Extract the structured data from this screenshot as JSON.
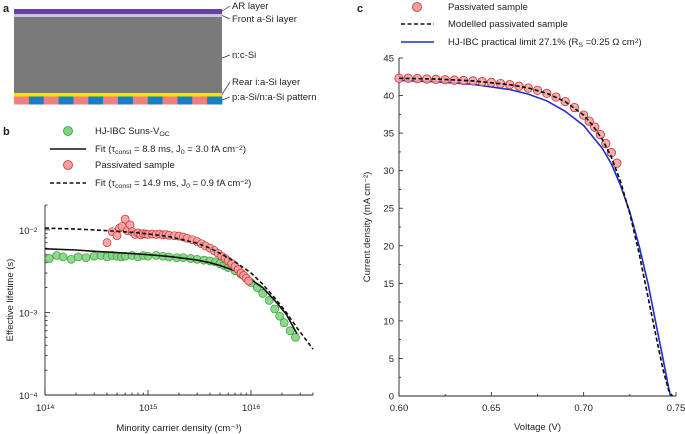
{
  "panel_labels": {
    "a": "a",
    "b": "b",
    "c": "c"
  },
  "schematic": {
    "layers": [
      {
        "label": "AR layer",
        "color": "#6a3fa0"
      },
      {
        "label": "Front a-Si layer",
        "color": "#c9c3e6"
      },
      {
        "label": "n:c-Si",
        "color": "#7a7a7a"
      },
      {
        "label": "Rear i:a-Si layer",
        "color": "#f2e600"
      },
      {
        "label": "p:a-Si/n:a-Si pattern",
        "color": "#f08080"
      }
    ],
    "pattern_colors": [
      "#f08080",
      "#1a7fc0"
    ]
  },
  "chart_data": [
    {
      "type": "scatter",
      "panel": "b",
      "xlabel": "Minority carrier density (cm⁻³)",
      "ylabel": "Effective lifetime (s)",
      "x_scale": "log",
      "y_scale": "log",
      "xlim": [
        100000000000000.0,
        4e+16
      ],
      "ylim": [
        0.0001,
        0.02
      ],
      "x_ticks": [
        {
          "v": 100000000000000.0,
          "base": "10",
          "exp": "14"
        },
        {
          "v": 1000000000000000.0,
          "base": "10",
          "exp": "15"
        },
        {
          "v": 1e+16,
          "base": "10",
          "exp": "16"
        }
      ],
      "y_ticks": [
        {
          "v": 0.0001,
          "base": "10",
          "exp": "−4"
        },
        {
          "v": 0.001,
          "base": "10",
          "exp": "−3"
        },
        {
          "v": 0.01,
          "base": "10",
          "exp": "−2"
        }
      ],
      "legend": [
        {
          "kind": "marker",
          "color": "#7fd47f",
          "stroke": "#3a9a3a",
          "text": "HJ-IBC Suns-V",
          "sub": "OC"
        },
        {
          "kind": "solid",
          "text": "Fit (τ",
          "sub": "const",
          "text2": " = 8.8 ms, J",
          "sub2": "0",
          "text3": " = 3.0 fA cm",
          "sup": "−2",
          "text4": ")"
        },
        {
          "kind": "marker",
          "color": "#f4a0a0",
          "stroke": "#c83030",
          "text": "Passivated sample"
        },
        {
          "kind": "dashed",
          "text": "Fit (τ",
          "sub": "const",
          "text2": " = 14.9 ms, J",
          "sub2": "0",
          "text3": " = 0.9 fA cm",
          "sup": "−2",
          "text4": ")"
        }
      ],
      "series": [
        {
          "name": "HJ-IBC Suns-VOC",
          "kind": "marker",
          "color": "#7fd47f",
          "stroke": "#3a9a3a",
          "x": [
            110000000000000.0,
            130000000000000.0,
            150000000000000.0,
            180000000000000.0,
            210000000000000.0,
            250000000000000.0,
            300000000000000.0,
            350000000000000.0,
            400000000000000.0,
            450000000000000.0,
            500000000000000.0,
            550000000000000.0,
            600000000000000.0,
            700000000000000.0,
            800000000000000.0,
            900000000000000.0,
            1000000000000000.0,
            1200000000000000.0,
            1400000000000000.0,
            1600000000000000.0,
            1900000000000000.0,
            2200000000000000.0,
            2600000000000000.0,
            3000000000000000.0,
            3500000000000000.0,
            4000000000000000.0,
            4500000000000000.0,
            5000000000000000.0,
            5500000000000000.0,
            6000000000000000.0,
            7000000000000000.0,
            8000000000000000.0,
            9000000000000000.0,
            1e+16,
            1.15e+16,
            1.3e+16,
            1.5e+16,
            1.7e+16,
            1.9e+16,
            2.1e+16,
            2.4e+16,
            2.7e+16
          ],
          "y": [
            0.0045,
            0.0049,
            0.0047,
            0.0044,
            0.0047,
            0.0046,
            0.0048,
            0.0049,
            0.0047,
            0.0049,
            0.0048,
            0.0047,
            0.0048,
            0.0049,
            0.0047,
            0.0049,
            0.0048,
            0.0049,
            0.0048,
            0.0047,
            0.0046,
            0.0046,
            0.0045,
            0.0044,
            0.0043,
            0.0042,
            0.0041,
            0.0039,
            0.0037,
            0.0035,
            0.0032,
            0.0029,
            0.0026,
            0.0023,
            0.002,
            0.0017,
            0.0014,
            0.0011,
            0.0009,
            0.00075,
            0.0006,
            0.0005
          ]
        },
        {
          "name": "Fit (τconst = 8.8 ms, J0 = 3.0 fA cm−2)",
          "kind": "solid",
          "color": "#111",
          "x": [
            100000000000000.0,
            200000000000000.0,
            300000000000000.0,
            500000000000000.0,
            800000000000000.0,
            1000000000000000.0,
            1500000000000000.0,
            2000000000000000.0,
            3000000000000000.0,
            4000000000000000.0,
            5000000000000000.0,
            7000000000000000.0,
            1e+16,
            1.3e+16,
            1.7e+16,
            2.2e+16,
            2.8e+16
          ],
          "y": [
            0.0059,
            0.0057,
            0.0055,
            0.0053,
            0.0051,
            0.005,
            0.0048,
            0.0046,
            0.0043,
            0.004,
            0.0037,
            0.0032,
            0.0025,
            0.002,
            0.0014,
            0.00095,
            0.00055
          ]
        },
        {
          "name": "Passivated sample",
          "kind": "marker",
          "color": "#f4a0a0",
          "stroke": "#c83030",
          "x": [
            400000000000000.0,
            450000000000000.0,
            500000000000000.0,
            530000000000000.0,
            560000000000000.0,
            600000000000000.0,
            630000000000000.0,
            670000000000000.0,
            700000000000000.0,
            750000000000000.0,
            800000000000000.0,
            850000000000000.0,
            900000000000000.0,
            950000000000000.0,
            1000000000000000.0,
            1100000000000000.0,
            1200000000000000.0,
            1300000000000000.0,
            1400000000000000.0,
            1500000000000000.0,
            1600000000000000.0,
            1800000000000000.0,
            2000000000000000.0,
            2200000000000000.0,
            2400000000000000.0,
            2700000000000000.0,
            3000000000000000.0,
            3300000000000000.0,
            3600000000000000.0,
            4000000000000000.0,
            4400000000000000.0,
            4800000000000000.0,
            5200000000000000.0,
            5600000000000000.0,
            6000000000000000.0,
            6500000000000000.0,
            7000000000000000.0,
            7500000000000000.0,
            8000000000000000.0,
            8500000000000000.0,
            9000000000000000.0,
            9500000000000000.0
          ],
          "y": [
            0.007,
            0.0095,
            0.0085,
            0.0105,
            0.011,
            0.0135,
            0.0098,
            0.0115,
            0.0095,
            0.0088,
            0.0092,
            0.0087,
            0.009,
            0.0089,
            0.0088,
            0.0089,
            0.0088,
            0.0089,
            0.0087,
            0.0088,
            0.0086,
            0.0085,
            0.0084,
            0.0082,
            0.0079,
            0.0076,
            0.0072,
            0.0068,
            0.0064,
            0.006,
            0.0056,
            0.0052,
            0.0048,
            0.0045,
            0.0042,
            0.0039,
            0.0036,
            0.0033,
            0.003,
            0.0028,
            0.0026,
            0.0024
          ]
        },
        {
          "name": "Fit (τconst = 14.9 ms, J0 = 0.9 fA cm−2)",
          "kind": "dashed",
          "color": "#111",
          "x": [
            100000000000000.0,
            200000000000000.0,
            300000000000000.0,
            500000000000000.0,
            800000000000000.0,
            1000000000000000.0,
            1500000000000000.0,
            2000000000000000.0,
            3000000000000000.0,
            4000000000000000.0,
            5000000000000000.0,
            7000000000000000.0,
            1e+16,
            1.3e+16,
            1.7e+16,
            2.2e+16,
            2.8e+16,
            3.5e+16,
            4e+16
          ],
          "y": [
            0.0105,
            0.0102,
            0.01,
            0.0096,
            0.0092,
            0.0089,
            0.0084,
            0.0078,
            0.0069,
            0.006,
            0.0052,
            0.0041,
            0.003,
            0.0022,
            0.0015,
            0.001,
            0.00065,
            0.00045,
            0.00036
          ]
        }
      ]
    },
    {
      "type": "line",
      "panel": "c",
      "xlabel": "Voltage (V)",
      "ylabel": "Current density (mA cm⁻²)",
      "xlim": [
        0.6,
        0.75
      ],
      "ylim": [
        0,
        45
      ],
      "x_ticks": [
        "0.60",
        "0.65",
        "0.70",
        "0.75"
      ],
      "y_ticks": [
        "0",
        "5",
        "10",
        "15",
        "20",
        "25",
        "30",
        "35",
        "40",
        "45"
      ],
      "legend": [
        {
          "kind": "marker",
          "color": "#f4a0a0",
          "stroke": "#c83030",
          "text": "Passivated sample"
        },
        {
          "kind": "dashed",
          "color": "#111",
          "text": "Modelled passivated sample"
        },
        {
          "kind": "solid",
          "color": "#1f2fd0",
          "text": "HJ-IBC practical limit 27.1% (R",
          "sub": "S",
          "text2": " =0.25 Ω cm",
          "sup": "2",
          "text3": ")"
        }
      ],
      "series": [
        {
          "name": "Passivated sample",
          "kind": "marker",
          "color": "#f4a0a0",
          "stroke": "#c83030",
          "x": [
            0.6,
            0.605,
            0.61,
            0.615,
            0.62,
            0.625,
            0.63,
            0.635,
            0.64,
            0.645,
            0.65,
            0.655,
            0.66,
            0.665,
            0.67,
            0.675,
            0.68,
            0.685,
            0.69,
            0.695,
            0.7,
            0.703,
            0.706,
            0.709,
            0.712,
            0.715,
            0.718
          ],
          "y": [
            42.3,
            42.3,
            42.25,
            42.2,
            42.15,
            42.1,
            42.05,
            42.0,
            41.95,
            41.85,
            41.75,
            41.6,
            41.45,
            41.25,
            41.0,
            40.7,
            40.3,
            39.8,
            39.2,
            38.4,
            37.4,
            36.6,
            35.8,
            34.8,
            33.6,
            32.4,
            31.0
          ]
        },
        {
          "name": "Modelled passivated sample",
          "kind": "dashed",
          "color": "#111",
          "x": [
            0.6,
            0.62,
            0.64,
            0.66,
            0.67,
            0.68,
            0.69,
            0.7,
            0.705,
            0.71,
            0.715,
            0.72,
            0.725,
            0.73,
            0.735,
            0.74,
            0.743,
            0.746,
            0.748
          ],
          "y": [
            42.3,
            42.2,
            41.95,
            41.45,
            41.0,
            40.3,
            39.2,
            37.4,
            36.0,
            34.2,
            31.8,
            28.5,
            24.3,
            19.0,
            13.0,
            7.0,
            3.5,
            0.8,
            0
          ]
        },
        {
          "name": "HJ-IBC practical limit 27.1% (RS =0.25 Ω cm2)",
          "kind": "solid",
          "color": "#1f2fd0",
          "x": [
            0.6,
            0.62,
            0.64,
            0.66,
            0.67,
            0.68,
            0.69,
            0.7,
            0.71,
            0.715,
            0.72,
            0.725,
            0.73,
            0.735,
            0.74,
            0.743,
            0.746,
            0.747
          ],
          "y": [
            42.0,
            41.85,
            41.5,
            40.8,
            40.2,
            39.3,
            37.9,
            36.0,
            33.0,
            30.9,
            28.0,
            24.5,
            20.0,
            14.8,
            8.6,
            4.9,
            1.1,
            0
          ]
        }
      ]
    }
  ]
}
